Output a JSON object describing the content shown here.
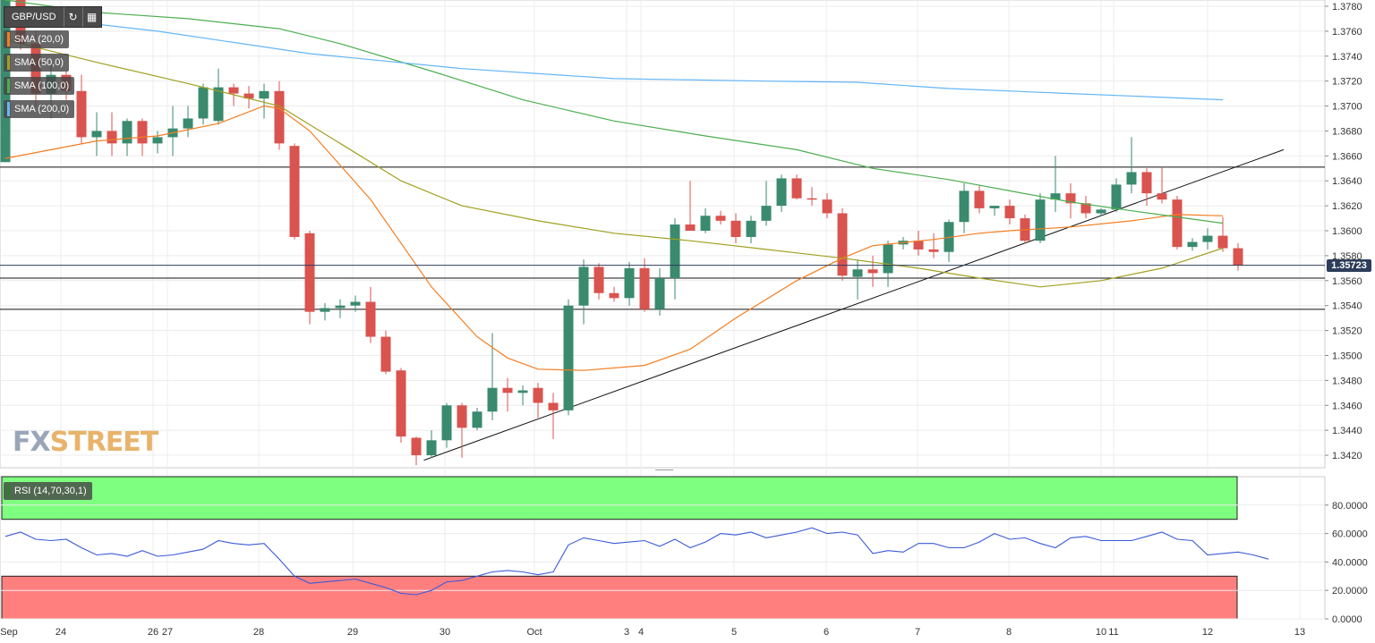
{
  "toolbar": {
    "symbol": "GBP/USD",
    "refresh_icon": "refresh-icon",
    "chart_type_icon": "bar-chart-icon"
  },
  "legends": [
    {
      "label": "SMA (20,0)",
      "color": "#f47d20"
    },
    {
      "label": "SMA (50,0)",
      "color": "#a0a020"
    },
    {
      "label": "SMA (100,0)",
      "color": "#4caf50"
    },
    {
      "label": "SMA (200,0)",
      "color": "#64b5f6"
    }
  ],
  "rsi_legend": {
    "label": "RSI (14,70,30,1)",
    "color": "#2e7d32"
  },
  "logo": {
    "fx": "FX",
    "street": "STREET"
  },
  "current_price": "1.35723",
  "colors": {
    "up": "#3a8a6e",
    "down": "#d9534f",
    "rsi_line": "#3a5ad9",
    "overbought": "#7fff7f",
    "oversold": "#ff7f7f"
  },
  "chart_data": [
    {
      "type": "candlestick",
      "title": "GBP/USD",
      "ylim": [
        1.341,
        1.3785
      ],
      "y_ticks": [
        "1.3780",
        "1.3760",
        "1.3740",
        "1.3720",
        "1.3700",
        "1.3680",
        "1.3660",
        "1.3640",
        "1.3620",
        "1.3600",
        "1.3580",
        "1.3560",
        "1.3540",
        "1.3520",
        "1.3500",
        "1.3480",
        "1.3460",
        "1.3440",
        "1.3420"
      ],
      "x_ticks": [
        "Sep",
        "24",
        "26",
        "27",
        "28",
        "29",
        "30",
        "Oct",
        "3",
        "4",
        "5",
        "6",
        "7",
        "8",
        "10",
        "11",
        "12",
        "13"
      ],
      "candles": [
        [
          1.3655,
          1.379,
          1.3655,
          1.3785
        ],
        [
          1.3785,
          1.379,
          1.3745,
          1.375
        ],
        [
          1.375,
          1.376,
          1.37,
          1.371
        ],
        [
          1.371,
          1.3735,
          1.369,
          1.3725
        ],
        [
          1.3725,
          1.3728,
          1.3705,
          1.3712
        ],
        [
          1.3712,
          1.3725,
          1.367,
          1.3675
        ],
        [
          1.3675,
          1.3695,
          1.366,
          1.368
        ],
        [
          1.368,
          1.3695,
          1.366,
          1.367
        ],
        [
          1.367,
          1.369,
          1.366,
          1.3688
        ],
        [
          1.3688,
          1.369,
          1.366,
          1.367
        ],
        [
          1.367,
          1.368,
          1.3662,
          1.3675
        ],
        [
          1.3675,
          1.37,
          1.366,
          1.3682
        ],
        [
          1.3682,
          1.37,
          1.3675,
          1.369
        ],
        [
          1.369,
          1.3718,
          1.3685,
          1.3715
        ],
        [
          1.3688,
          1.373,
          1.3685,
          1.3715
        ],
        [
          1.3715,
          1.3718,
          1.37,
          1.371
        ],
        [
          1.371,
          1.3716,
          1.3698,
          1.3706
        ],
        [
          1.3706,
          1.3718,
          1.369,
          1.3712
        ],
        [
          1.3712,
          1.372,
          1.3665,
          1.367
        ],
        [
          1.3668,
          1.367,
          1.3593,
          1.3595
        ],
        [
          1.3598,
          1.36,
          1.3525,
          1.3535
        ],
        [
          1.3535,
          1.3542,
          1.3528,
          1.3538
        ],
        [
          1.3538,
          1.3545,
          1.353,
          1.354
        ],
        [
          1.354,
          1.3548,
          1.3535,
          1.3543
        ],
        [
          1.3543,
          1.3555,
          1.351,
          1.3515
        ],
        [
          1.3515,
          1.352,
          1.3485,
          1.3487
        ],
        [
          1.3488,
          1.349,
          1.343,
          1.3435
        ],
        [
          1.3434,
          1.3435,
          1.3412,
          1.342
        ],
        [
          1.342,
          1.344,
          1.3418,
          1.3432
        ],
        [
          1.3432,
          1.3462,
          1.3426,
          1.346
        ],
        [
          1.346,
          1.3462,
          1.3418,
          1.3442
        ],
        [
          1.3442,
          1.3458,
          1.344,
          1.3455
        ],
        [
          1.3455,
          1.3518,
          1.3448,
          1.3474
        ],
        [
          1.3474,
          1.3482,
          1.3455,
          1.347
        ],
        [
          1.347,
          1.3476,
          1.346,
          1.3472
        ],
        [
          1.3474,
          1.3478,
          1.345,
          1.3462
        ],
        [
          1.3462,
          1.347,
          1.3433,
          1.3456
        ],
        [
          1.3456,
          1.3545,
          1.3452,
          1.354
        ],
        [
          1.354,
          1.3577,
          1.3525,
          1.3571
        ],
        [
          1.3571,
          1.3574,
          1.3545,
          1.355
        ],
        [
          1.355,
          1.3555,
          1.3543,
          1.3546
        ],
        [
          1.3546,
          1.3575,
          1.354,
          1.357
        ],
        [
          1.357,
          1.3578,
          1.3535,
          1.3537
        ],
        [
          1.3537,
          1.357,
          1.3532,
          1.3562
        ],
        [
          1.3562,
          1.361,
          1.3545,
          1.3605
        ],
        [
          1.3605,
          1.364,
          1.36,
          1.36
        ],
        [
          1.36,
          1.3618,
          1.3598,
          1.3612
        ],
        [
          1.3612,
          1.3616,
          1.3605,
          1.3608
        ],
        [
          1.3608,
          1.3614,
          1.359,
          1.3595
        ],
        [
          1.3595,
          1.3612,
          1.359,
          1.3608
        ],
        [
          1.3608,
          1.364,
          1.3604,
          1.362
        ],
        [
          1.362,
          1.3645,
          1.3615,
          1.3642
        ],
        [
          1.3642,
          1.3645,
          1.3625,
          1.3626
        ],
        [
          1.3626,
          1.3635,
          1.362,
          1.3625
        ],
        [
          1.3625,
          1.363,
          1.361,
          1.3614
        ],
        [
          1.3614,
          1.3618,
          1.356,
          1.3564
        ],
        [
          1.3563,
          1.3577,
          1.3545,
          1.3569
        ],
        [
          1.3569,
          1.358,
          1.3555,
          1.3566
        ],
        [
          1.3566,
          1.3592,
          1.3555,
          1.3589
        ],
        [
          1.3589,
          1.3595,
          1.3585,
          1.3592
        ],
        [
          1.3592,
          1.36,
          1.358,
          1.3585
        ],
        [
          1.3585,
          1.3598,
          1.3578,
          1.3583
        ],
        [
          1.3583,
          1.3609,
          1.3575,
          1.3607
        ],
        [
          1.3607,
          1.3638,
          1.3598,
          1.3632
        ],
        [
          1.3632,
          1.3636,
          1.3614,
          1.3618
        ],
        [
          1.3618,
          1.362,
          1.3612,
          1.362
        ],
        [
          1.362,
          1.3625,
          1.3605,
          1.361
        ],
        [
          1.361,
          1.3613,
          1.359,
          1.3592
        ],
        [
          1.3592,
          1.363,
          1.359,
          1.3625
        ],
        [
          1.3625,
          1.366,
          1.3615,
          1.363
        ],
        [
          1.363,
          1.3638,
          1.361,
          1.3622
        ],
        [
          1.3622,
          1.3628,
          1.361,
          1.3614
        ],
        [
          1.3614,
          1.3618,
          1.3612,
          1.3617
        ],
        [
          1.3617,
          1.3642,
          1.3615,
          1.3637
        ],
        [
          1.3637,
          1.3675,
          1.363,
          1.3647
        ],
        [
          1.3647,
          1.365,
          1.362,
          1.363
        ],
        [
          1.363,
          1.3651,
          1.3622,
          1.3625
        ],
        [
          1.3625,
          1.3628,
          1.3585,
          1.3587
        ],
        [
          1.3587,
          1.3594,
          1.3584,
          1.3591
        ],
        [
          1.3591,
          1.3602,
          1.3585,
          1.3596
        ],
        [
          1.3596,
          1.3611,
          1.3583,
          1.3586
        ],
        [
          1.3586,
          1.359,
          1.3568,
          1.3572
        ]
      ],
      "series": [
        {
          "name": "SMA (20,0)",
          "color": "#f47d20",
          "points": [
            [
              0,
              1.3658
            ],
            [
              6,
              1.3672
            ],
            [
              10,
              1.3676
            ],
            [
              14,
              1.3686
            ],
            [
              17,
              1.37
            ],
            [
              18,
              1.3698
            ],
            [
              20,
              1.368
            ],
            [
              24,
              1.3625
            ],
            [
              28,
              1.3555
            ],
            [
              31,
              1.3515
            ],
            [
              33,
              1.3498
            ],
            [
              35,
              1.3489
            ],
            [
              38,
              1.3488
            ],
            [
              42,
              1.3492
            ],
            [
              45,
              1.3505
            ],
            [
              48,
              1.353
            ],
            [
              52,
              1.356
            ],
            [
              55,
              1.3578
            ],
            [
              57,
              1.3588
            ],
            [
              61,
              1.3593
            ],
            [
              64,
              1.3598
            ],
            [
              66,
              1.36
            ],
            [
              70,
              1.3603
            ],
            [
              74,
              1.3608
            ],
            [
              77,
              1.3613
            ],
            [
              80,
              1.3612
            ]
          ]
        },
        {
          "name": "SMA (50,0)",
          "color": "#a0a020",
          "points": [
            [
              0,
              1.3753
            ],
            [
              6,
              1.3735
            ],
            [
              12,
              1.3718
            ],
            [
              18,
              1.37
            ],
            [
              22,
              1.367
            ],
            [
              26,
              1.364
            ],
            [
              30,
              1.362
            ],
            [
              35,
              1.3608
            ],
            [
              40,
              1.3598
            ],
            [
              45,
              1.3592
            ],
            [
              50,
              1.3585
            ],
            [
              55,
              1.3578
            ],
            [
              60,
              1.357
            ],
            [
              64,
              1.3562
            ],
            [
              68,
              1.3555
            ],
            [
              72,
              1.356
            ],
            [
              76,
              1.357
            ],
            [
              80,
              1.3586
            ]
          ]
        },
        {
          "name": "SMA (100,0)",
          "color": "#4caf50",
          "points": [
            [
              0,
              1.3785
            ],
            [
              6,
              1.3775
            ],
            [
              12,
              1.377
            ],
            [
              18,
              1.3762
            ],
            [
              22,
              1.375
            ],
            [
              28,
              1.3728
            ],
            [
              34,
              1.3705
            ],
            [
              40,
              1.3688
            ],
            [
              46,
              1.3676
            ],
            [
              52,
              1.3665
            ],
            [
              57,
              1.365
            ],
            [
              62,
              1.3641
            ],
            [
              66,
              1.3632
            ],
            [
              70,
              1.3623
            ],
            [
              74,
              1.3616
            ],
            [
              80,
              1.3606
            ]
          ]
        },
        {
          "name": "SMA (200,0)",
          "color": "#64b5f6",
          "points": [
            [
              0,
              1.3774
            ],
            [
              10,
              1.376
            ],
            [
              20,
              1.3742
            ],
            [
              30,
              1.373
            ],
            [
              40,
              1.3722
            ],
            [
              50,
              1.372
            ],
            [
              56,
              1.3719
            ],
            [
              62,
              1.3714
            ],
            [
              70,
              1.371
            ],
            [
              80,
              1.3705
            ]
          ]
        }
      ],
      "trendlines": [
        {
          "kind": "rising",
          "from": [
            27.5,
            1.3416
          ],
          "to": [
            84,
            1.3665
          ]
        },
        {
          "kind": "horizontal",
          "y": 1.3651
        },
        {
          "kind": "horizontal",
          "y": 1.3562
        },
        {
          "kind": "horizontal",
          "y": 1.3537
        }
      ]
    },
    {
      "type": "line",
      "title": "RSI (14,70,30,1)",
      "ylim": [
        0,
        100
      ],
      "y_ticks": [
        "80.0000",
        "60.0000",
        "40.0000",
        "20.0000",
        "0.0000"
      ],
      "overbought": 70,
      "oversold": 30,
      "values": [
        58,
        61,
        56,
        55,
        56,
        50,
        45,
        46,
        44,
        48,
        44,
        45,
        47,
        49,
        55,
        53,
        52,
        53,
        42,
        30,
        25,
        26,
        27,
        28,
        25,
        22,
        18,
        17,
        20,
        26,
        27,
        30,
        33,
        34,
        33,
        31,
        33,
        52,
        57,
        55,
        53,
        54,
        55,
        51,
        56,
        50,
        54,
        60,
        59,
        61,
        57,
        59,
        61,
        64,
        60,
        61,
        59,
        46,
        48,
        47,
        53,
        53,
        50,
        50,
        54,
        60,
        56,
        57,
        53,
        50,
        57,
        58,
        55,
        55,
        55,
        58,
        61,
        56,
        55,
        45,
        46,
        47,
        45,
        42
      ]
    }
  ]
}
